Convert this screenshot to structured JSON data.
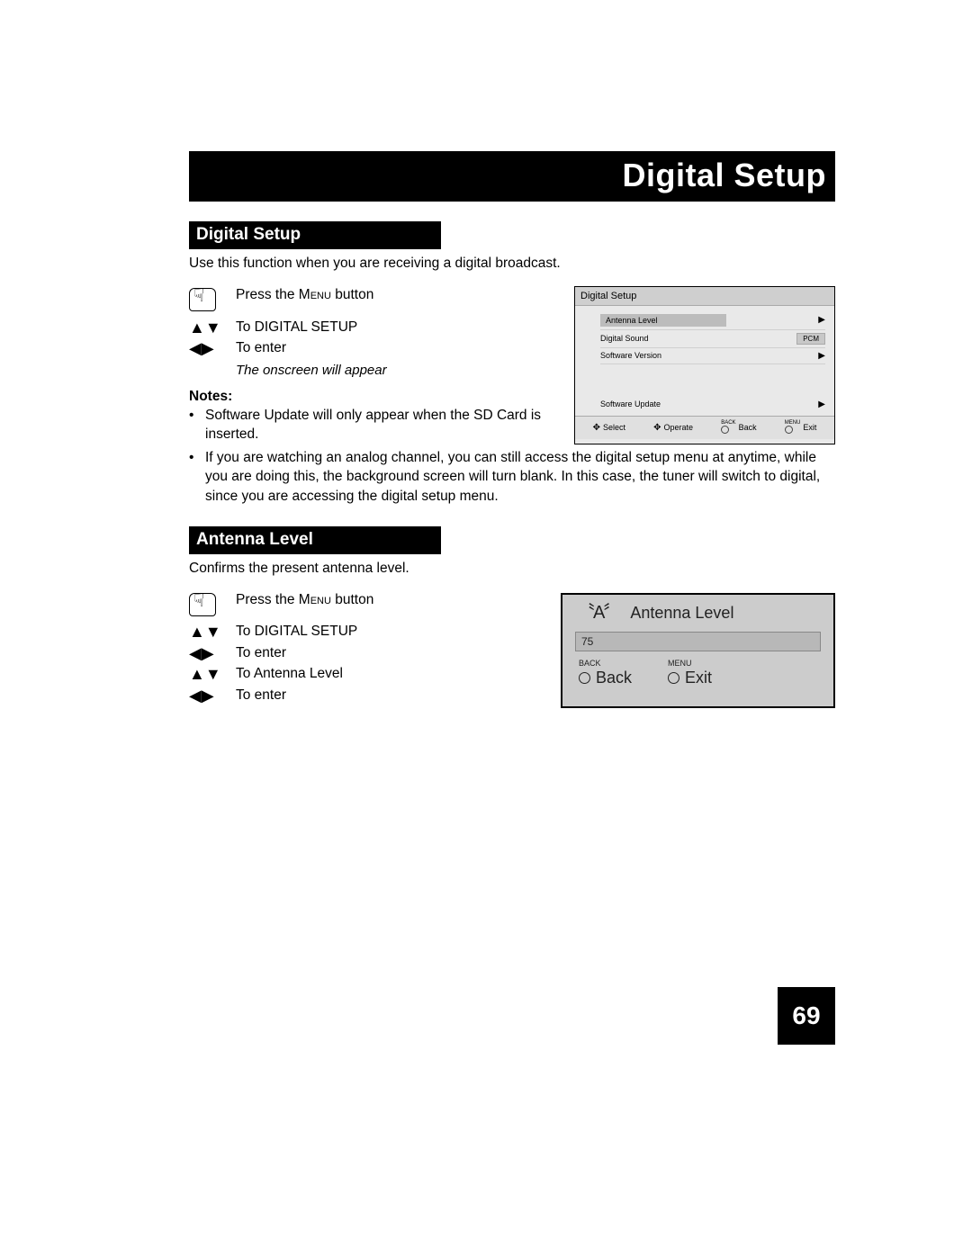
{
  "page": {
    "title": "Digital Setup",
    "number": "69"
  },
  "section1": {
    "header": "Digital Setup",
    "intro": "Use this function when you are receiving a digital broadcast.",
    "step1_prefix": "Press the ",
    "step1_menu": "Menu",
    "step1_suffix": " button",
    "step2": "To DIGITAL SETUP",
    "step3": "To enter",
    "onscreen": "The onscreen will appear",
    "notes_label": "Notes:",
    "note1": "Software Update will only appear when the SD Card is inserted.",
    "note2": "If you are watching an analog channel, you can still access the digital setup menu at anytime, while you are doing this, the background screen will turn blank.  In this case, the tuner will switch to digital, since you are accessing the digital setup menu."
  },
  "osd": {
    "title": "Digital Setup",
    "items": [
      {
        "label": "Antenna Level",
        "right": "▶",
        "hl": true
      },
      {
        "label": "Digital Sound",
        "value": "PCM"
      },
      {
        "label": "Software Version",
        "right": "▶"
      }
    ],
    "update_label": "Software Update",
    "update_right": "▶",
    "footer": {
      "select": "Select",
      "operate": "Operate",
      "back_tiny": "BACK",
      "back": "Back",
      "exit_tiny": "MENU",
      "exit": "Exit"
    }
  },
  "section2": {
    "header": "Antenna Level",
    "intro": "Confirms the present antenna level.",
    "step1_prefix": "Press the ",
    "step1_menu": "Menu",
    "step1_suffix": " button",
    "step2": "To DIGITAL SETUP",
    "step3": "To enter",
    "step4": "To Antenna Level",
    "step5": "To enter"
  },
  "antenna": {
    "title": "Antenna Level",
    "value": "75",
    "back_tiny": "BACK",
    "back": "Back",
    "exit_tiny": "MENU",
    "exit": "Exit"
  },
  "glyphs": {
    "updown": "▲▼",
    "leftright": "◀▶",
    "fourway": "✥"
  }
}
